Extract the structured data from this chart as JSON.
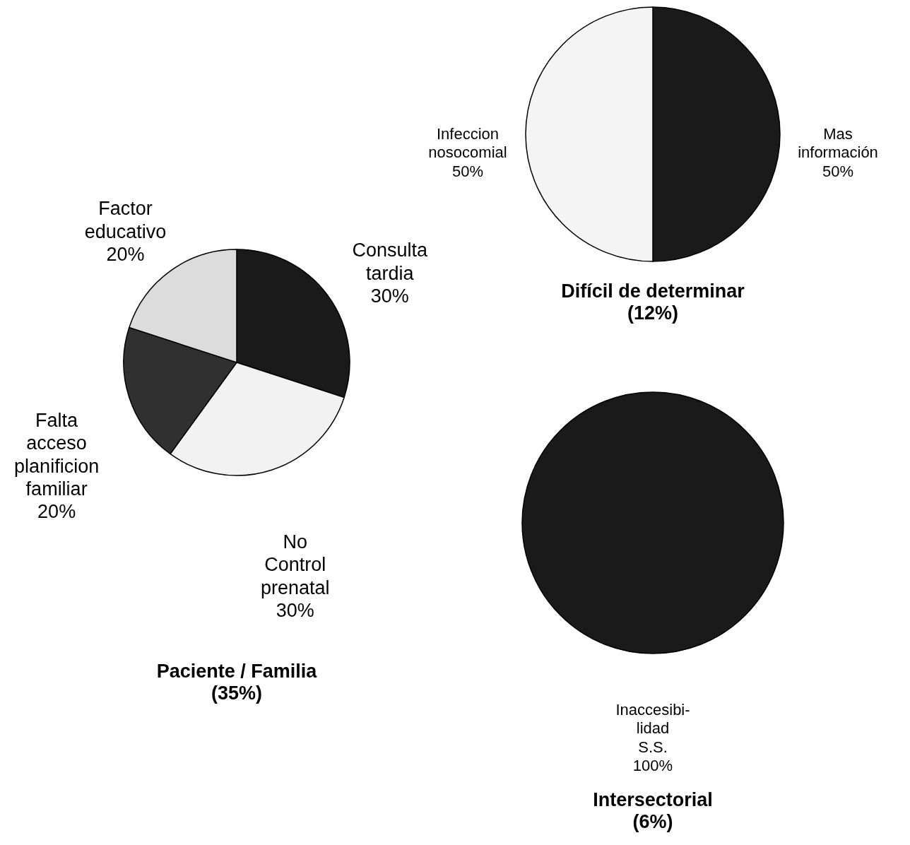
{
  "chart_data": [
    {
      "type": "pie",
      "title": "Paciente / Familia",
      "subtitle": "(35%)",
      "categories": [
        "Consulta tardia",
        "No Control prenatal",
        "Falta acceso planificion familiar",
        "Factor educativo"
      ],
      "values": [
        30,
        30,
        20,
        20
      ],
      "value_labels": [
        "30%",
        "30%",
        "20%",
        "20%"
      ],
      "colors": [
        "#1a1a1a",
        "#f2f2f2",
        "#303030",
        "#dcdcdc"
      ]
    },
    {
      "type": "pie",
      "title": "Difícil de determinar",
      "subtitle": "(12%)",
      "categories": [
        "Mas información",
        "Infeccion nosocomial"
      ],
      "values": [
        50,
        50
      ],
      "value_labels": [
        "50%",
        "50%"
      ],
      "colors": [
        "#1a1a1a",
        "#f4f4f4"
      ]
    },
    {
      "type": "pie",
      "title": "Intersectorial",
      "subtitle": "(6%)",
      "categories": [
        "Inaccesibi-lidad S.S."
      ],
      "values": [
        100
      ],
      "value_labels": [
        "100%"
      ],
      "colors": [
        "#1a1a1a"
      ]
    }
  ]
}
